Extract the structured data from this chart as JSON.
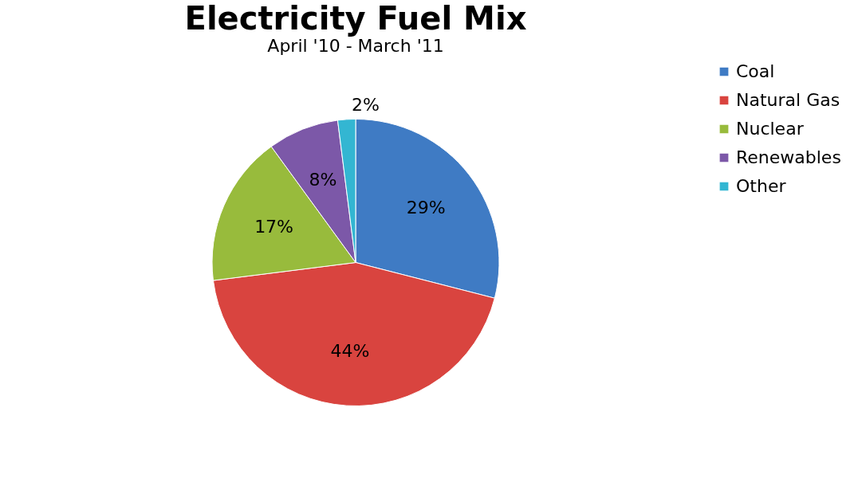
{
  "chart_data": {
    "type": "pie",
    "title": "Electricity Fuel Mix",
    "subtitle": "April '10 - March '11",
    "categories": [
      "Coal",
      "Natural Gas",
      "Nuclear",
      "Renewables",
      "Other"
    ],
    "values": [
      29,
      44,
      17,
      8,
      2
    ],
    "colors": [
      "#3f7bc4",
      "#d9443f",
      "#98bb3c",
      "#7c58a8",
      "#33b6d2"
    ],
    "value_labels": [
      "29%",
      "44%",
      "17%",
      "8%",
      "2%"
    ],
    "legend": "right"
  }
}
